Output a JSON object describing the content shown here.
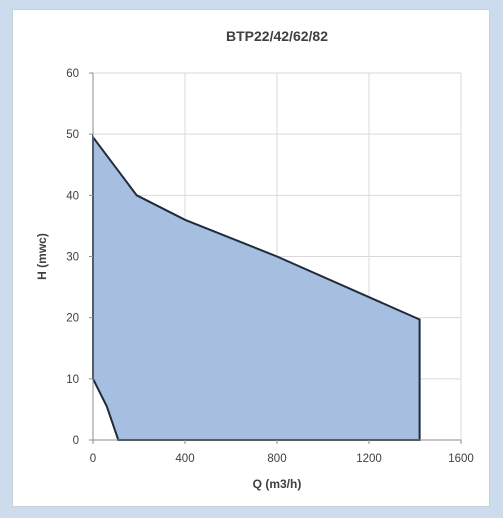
{
  "chart_data": {
    "type": "area",
    "title": "BTP22/42/62/82",
    "xlabel": "Q (m3/h)",
    "ylabel": "H (mwc)",
    "xlim": [
      0,
      1600
    ],
    "ylim": [
      0,
      60
    ],
    "x_ticks": [
      "0",
      "400",
      "800",
      "1200",
      "1600"
    ],
    "y_ticks": [
      "0",
      "10",
      "20",
      "30",
      "40",
      "50",
      "60"
    ],
    "grid": true,
    "legend": "none",
    "series": [
      {
        "x": [
          0,
          190,
          400,
          800,
          1420,
          1420,
          110,
          60,
          0,
          0
        ],
        "y": [
          49.5,
          40,
          36,
          30,
          19.7,
          0,
          0,
          5.5,
          10,
          49.5
        ]
      }
    ],
    "colors": {
      "fill": "#a6bedf",
      "outline": "#1f2b3a",
      "grid": "#d9d9d9",
      "background": "#ccdcec"
    }
  }
}
